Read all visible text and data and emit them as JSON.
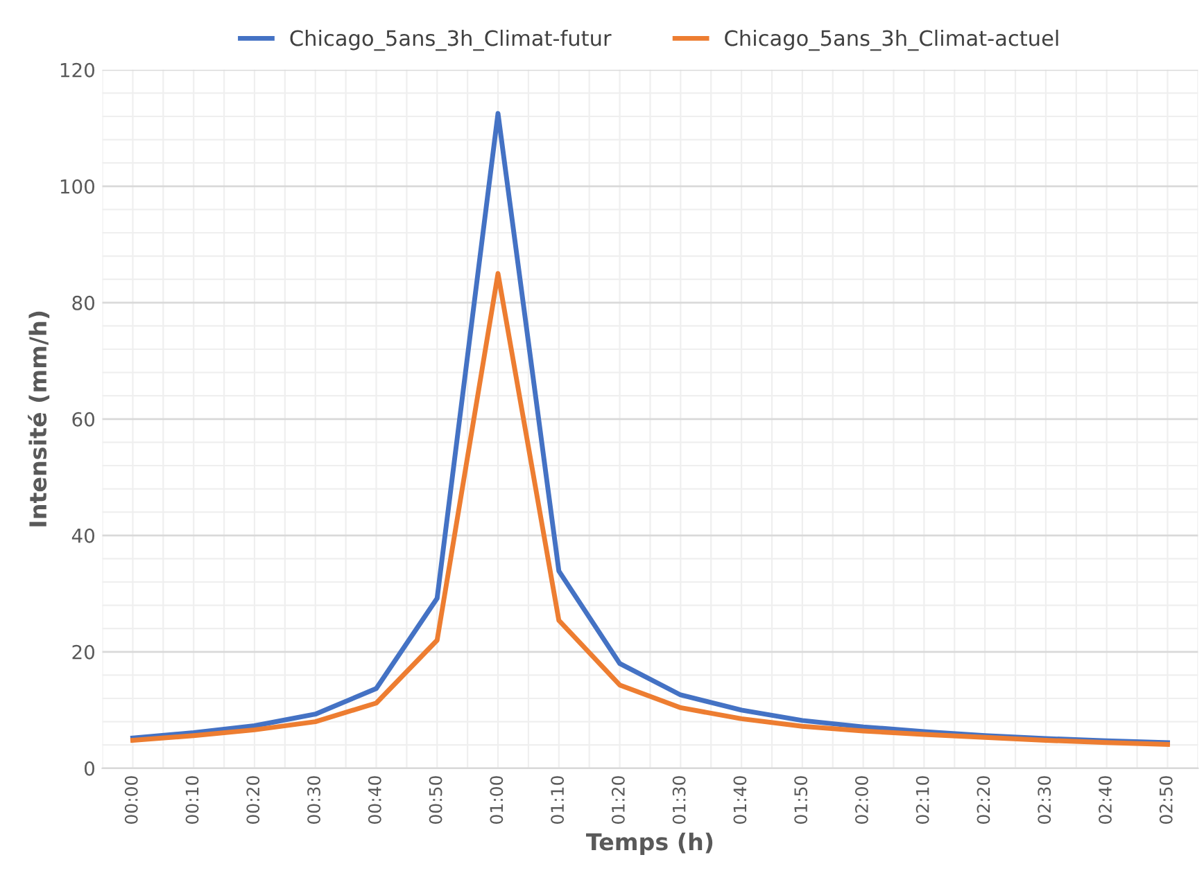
{
  "chart_data": {
    "type": "line",
    "xlabel": "Temps (h)",
    "ylabel": "Intensité (mm/h)",
    "categories": [
      "00:00",
      "00:10",
      "00:20",
      "00:30",
      "00:40",
      "00:50",
      "01:00",
      "01:10",
      "01:20",
      "01:30",
      "01:40",
      "01:50",
      "02:00",
      "02:10",
      "02:20",
      "02:30",
      "02:40",
      "02:50"
    ],
    "series": [
      {
        "name": "Chicago_5ans_3h_Climat-futur",
        "color": "#4472c4",
        "values": [
          5.2,
          6.1,
          7.3,
          9.3,
          13.7,
          29.2,
          112.5,
          33.9,
          18,
          12.6,
          10,
          8.2,
          7.1,
          6.3,
          5.6,
          5.1,
          4.7,
          4.4
        ]
      },
      {
        "name": "Chicago_5ans_3h_Climat-actuel",
        "color": "#ed7d31",
        "values": [
          4.8,
          5.6,
          6.6,
          8.0,
          11.2,
          22,
          85,
          25.4,
          14.3,
          10.4,
          8.5,
          7.2,
          6.4,
          5.8,
          5.3,
          4.8,
          4.4,
          4.1
        ]
      }
    ],
    "ylim": [
      0,
      120
    ],
    "yticks": [
      0,
      20,
      40,
      60,
      80,
      100,
      120
    ],
    "grid": true,
    "legend": "top",
    "marker": "none",
    "line_style": "solid"
  }
}
